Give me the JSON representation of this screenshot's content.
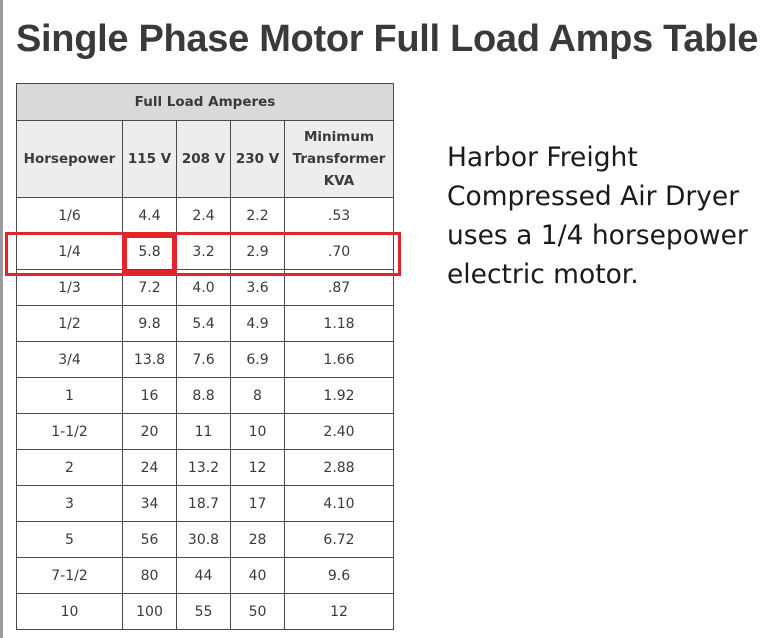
{
  "page": {
    "title": "Single Phase Motor Full Load Amps Table",
    "note": "Harbor Freight Compressed Air Dryer uses a 1/4 horsepower electric motor."
  },
  "table": {
    "group_header": "Full Load Amperes",
    "columns": [
      "Horsepower",
      "115 V",
      "208 V",
      "230 V",
      "Minimum Transformer KVA"
    ],
    "rows": [
      [
        "1/6",
        "4.4",
        "2.4",
        "2.2",
        ".53"
      ],
      [
        "1/4",
        "5.8",
        "3.2",
        "2.9",
        ".70"
      ],
      [
        "1/3",
        "7.2",
        "4.0",
        "3.6",
        ".87"
      ],
      [
        "1/2",
        "9.8",
        "5.4",
        "4.9",
        "1.18"
      ],
      [
        "3/4",
        "13.8",
        "7.6",
        "6.9",
        "1.66"
      ],
      [
        "1",
        "16",
        "8.8",
        "8",
        "1.92"
      ],
      [
        "1-1/2",
        "20",
        "11",
        "10",
        "2.40"
      ],
      [
        "2",
        "24",
        "13.2",
        "12",
        "2.88"
      ],
      [
        "3",
        "34",
        "18.7",
        "17",
        "4.10"
      ],
      [
        "5",
        "56",
        "30.8",
        "28",
        "6.72"
      ],
      [
        "7-1/2",
        "80",
        "44",
        "40",
        "9.6"
      ],
      [
        "10",
        "100",
        "55",
        "50",
        "12"
      ]
    ]
  },
  "highlight": {
    "color": "#e0262b",
    "row": "1/4",
    "value": "5.8"
  }
}
